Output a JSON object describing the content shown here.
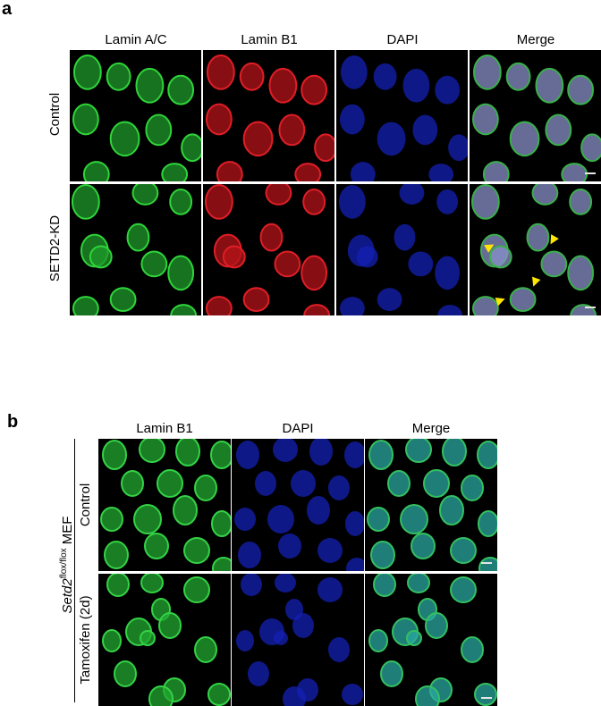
{
  "panel_a": {
    "letter": "a",
    "columns": [
      "Lamin A/C",
      "Lamin B1",
      "DAPI",
      "Merge"
    ],
    "rows": [
      "Control",
      "SETD2-KD"
    ]
  },
  "panel_b": {
    "letter": "b",
    "columns": [
      "Lamin B1",
      "DAPI",
      "Merge"
    ],
    "rows": [
      "Control",
      "Tamoxifen (2d)"
    ],
    "group_label": {
      "gene": "Setd2",
      "superscript": "flox/flox",
      "suffix": " MEF"
    }
  },
  "colors": {
    "lamin_ac": "#1f9a2a",
    "lamin_b1_red": "#b4141a",
    "dapi": "#1420b4",
    "merge": "#8890c8",
    "arrow": "#ffe600",
    "lamin_b1_green": "#22a830",
    "merge_b": "#2aa8a0"
  }
}
